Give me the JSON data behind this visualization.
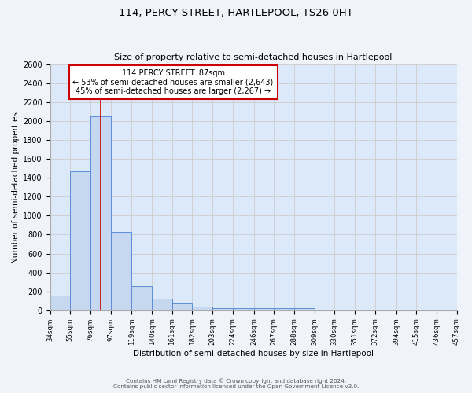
{
  "title": "114, PERCY STREET, HARTLEPOOL, TS26 0HT",
  "subtitle": "Size of property relative to semi-detached houses in Hartlepool",
  "xlabel": "Distribution of semi-detached houses by size in Hartlepool",
  "ylabel": "Number of semi-detached properties",
  "bin_edges": [
    34,
    55,
    76,
    97,
    119,
    140,
    161,
    182,
    203,
    224,
    246,
    267,
    288,
    309,
    330,
    351,
    372,
    394,
    415,
    436,
    457
  ],
  "bin_counts": [
    155,
    1470,
    2050,
    830,
    255,
    120,
    70,
    40,
    25,
    20,
    20,
    25,
    20,
    0,
    0,
    0,
    0,
    0,
    0,
    0
  ],
  "bar_color": "#c5d8f0",
  "bar_edge_color": "#5b8dd9",
  "property_size": 87,
  "property_line_color": "#cc0000",
  "annotation_title": "114 PERCY STREET: 87sqm",
  "annotation_line1": "← 53% of semi-detached houses are smaller (2,643)",
  "annotation_line2": "45% of semi-detached houses are larger (2,267) →",
  "annotation_box_color": "#ffffff",
  "annotation_box_edge": "#cc0000",
  "ylim": [
    0,
    2600
  ],
  "yticks": [
    0,
    200,
    400,
    600,
    800,
    1000,
    1200,
    1400,
    1600,
    1800,
    2000,
    2200,
    2400,
    2600
  ],
  "grid_color": "#cccccc",
  "plot_bg_color": "#dce9f8",
  "fig_bg_color": "#f0f4fa",
  "footer_line1": "Contains HM Land Registry data © Crown copyright and database right 2024.",
  "footer_line2": "Contains public sector information licensed under the Open Government Licence v3.0."
}
